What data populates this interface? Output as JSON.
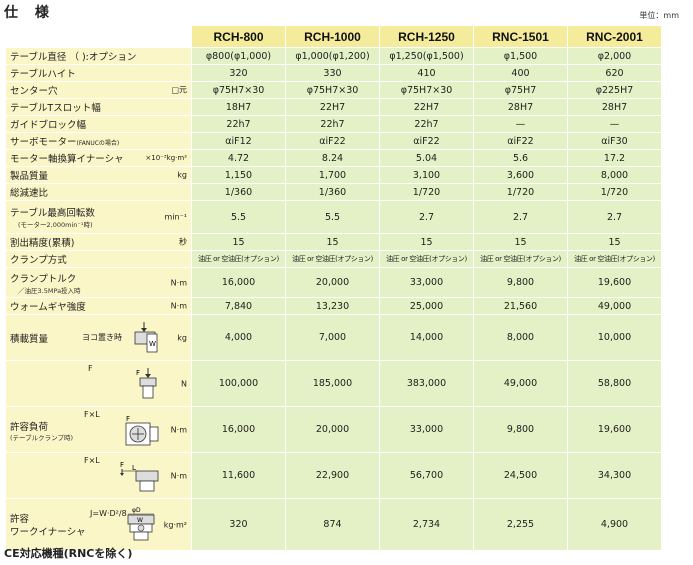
{
  "title": "仕 様",
  "unit_note": "単位：mm",
  "footer": "CE対応機種(RNCを除く)",
  "models": [
    "RCH-800",
    "RCH-1000",
    "RCH-1250",
    "RNC-1501",
    "RNC-2001"
  ],
  "rows": [
    {
      "label": "テーブル直径 （ ):オプション",
      "values": [
        "φ800(φ1,000)",
        "φ1,000(φ1,200)",
        "φ1,250(φ1,500)",
        "φ1,500",
        "φ2,000"
      ]
    },
    {
      "label": "テーブルハイト",
      "values": [
        "320",
        "330",
        "410",
        "400",
        "620"
      ]
    },
    {
      "label": "センター穴",
      "unit": "□元",
      "values": [
        "φ75H7×30",
        "φ75H7×30",
        "φ75H7×30",
        "φ75H7",
        "φ225H7"
      ]
    },
    {
      "label": "テーブルTスロット幅",
      "values": [
        "18H7",
        "22H7",
        "22H7",
        "28H7",
        "28H7"
      ]
    },
    {
      "label": "ガイドブロック幅",
      "values": [
        "22h7",
        "22h7",
        "22h7",
        "—",
        "—"
      ]
    },
    {
      "label": "サーボモーター",
      "label_small": "(FANUCの場合)",
      "values": [
        "αiF12",
        "αiF22",
        "αiF22",
        "αiF22",
        "αiF30"
      ]
    },
    {
      "label": "モーター軸換算イナーシャ",
      "unit": "×10⁻³kg·m²",
      "values": [
        "4.72",
        "8.24",
        "5.04",
        "5.6",
        "17.2"
      ]
    },
    {
      "label": "製品質量",
      "unit": "kg",
      "values": [
        "1,150",
        "1,700",
        "3,100",
        "3,600",
        "8,000"
      ]
    },
    {
      "label": "総減速比",
      "values": [
        "1/360",
        "1/360",
        "1/720",
        "1/720",
        "1/720"
      ]
    },
    {
      "label": "テーブル最高回転数",
      "sublabel": "(モーター2,000min⁻¹時)",
      "unit": "min⁻¹",
      "values": [
        "5.5",
        "5.5",
        "2.7",
        "2.7",
        "2.7"
      ]
    },
    {
      "label": "割出精度(累積)",
      "unit": "秒",
      "values": [
        "15",
        "15",
        "15",
        "15",
        "15"
      ]
    },
    {
      "label": "クランプ方式",
      "values": [
        "油圧 or 空油圧(オプション)",
        "油圧 or 空油圧(オプション)",
        "油圧 or 空油圧(オプション)",
        "油圧 or 空油圧(オプション)",
        "油圧 or 空油圧(オプション)"
      ]
    },
    {
      "label": "クランプトルク",
      "sublabel": "／油圧3.5MPa投入時",
      "unit": "N·m",
      "values": [
        "16,000",
        "20,000",
        "33,000",
        "9,800",
        "19,600"
      ]
    },
    {
      "label": "ウォームギヤ強度",
      "unit": "N·m",
      "values": [
        "7,840",
        "13,230",
        "25,000",
        "21,560",
        "49,000"
      ]
    },
    {
      "label": "積載質量",
      "note": "ヨコ置き時",
      "icon_letter": "W",
      "unit": "kg",
      "values": [
        "4,000",
        "7,000",
        "14,000",
        "8,000",
        "10,000"
      ]
    },
    {
      "label": "",
      "note": "F",
      "icon_letter": "F",
      "unit": "N",
      "values": [
        "100,000",
        "185,000",
        "383,000",
        "49,000",
        "58,800"
      ]
    },
    {
      "label": "許容負荷",
      "sublabel": "(テーブルクランプ時)",
      "note": "F×L",
      "icon_letter": "F",
      "unit": "N·m",
      "values": [
        "16,000",
        "20,000",
        "33,000",
        "9,800",
        "19,600"
      ]
    },
    {
      "label": "",
      "note": "F×L",
      "icon_letters": [
        "F",
        "L"
      ],
      "unit": "N·m",
      "values": [
        "11,600",
        "22,900",
        "56,700",
        "24,500",
        "34,300"
      ]
    },
    {
      "label": "許容",
      "label2": "ワークイナーシャ",
      "formula": "J=W·D²/8",
      "icon_letters": [
        "φD",
        "W"
      ],
      "unit": "kg·m²",
      "values": [
        "320",
        "874",
        "2,734",
        "2,255",
        "4,900"
      ]
    }
  ]
}
